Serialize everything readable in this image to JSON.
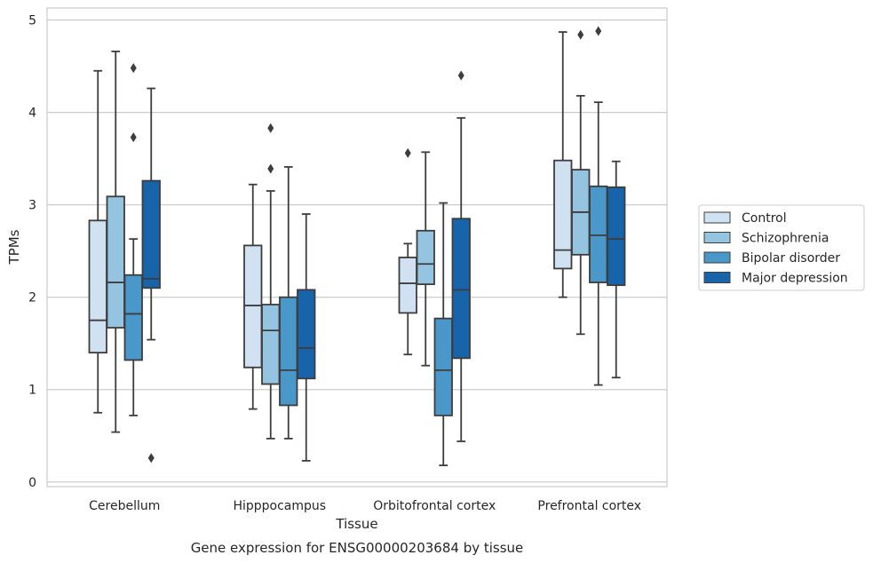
{
  "caption": "Gene expression for ENSG00000203684 by tissue",
  "chart_data": {
    "type": "box",
    "xlabel": "Tissue",
    "ylabel": "TPMs",
    "ylim": [
      -0.05,
      5.13
    ],
    "yticks": [
      0,
      1,
      2,
      3,
      4,
      5
    ],
    "grid": "horizontal",
    "legend_position": "right",
    "categories": [
      "Cerebellum",
      "Hipppocampus",
      "Orbitofrontal cortex",
      "Prefrontal cortex"
    ],
    "series": [
      {
        "name": "Control",
        "color": "#d0e1f2",
        "boxes": [
          {
            "whislo": 0.75,
            "q1": 1.4,
            "med": 1.75,
            "q3": 2.83,
            "whishi": 4.45,
            "fliers": []
          },
          {
            "whislo": 0.79,
            "q1": 1.24,
            "med": 1.91,
            "q3": 2.56,
            "whishi": 3.22,
            "fliers": []
          },
          {
            "whislo": 1.38,
            "q1": 1.83,
            "med": 2.15,
            "q3": 2.43,
            "whishi": 2.58,
            "fliers": [
              3.56
            ]
          },
          {
            "whislo": 2.0,
            "q1": 2.31,
            "med": 2.51,
            "q3": 3.48,
            "whishi": 4.87,
            "fliers": []
          }
        ]
      },
      {
        "name": "Schizophrenia",
        "color": "#94c4df",
        "boxes": [
          {
            "whislo": 0.54,
            "q1": 1.67,
            "med": 2.16,
            "q3": 3.09,
            "whishi": 4.66,
            "fliers": []
          },
          {
            "whislo": 0.47,
            "q1": 1.06,
            "med": 1.64,
            "q3": 1.92,
            "whishi": 3.15,
            "fliers": [
              3.39,
              3.83
            ]
          },
          {
            "whislo": 1.26,
            "q1": 2.14,
            "med": 2.36,
            "q3": 2.72,
            "whishi": 3.57,
            "fliers": []
          },
          {
            "whislo": 1.6,
            "q1": 2.46,
            "med": 2.92,
            "q3": 3.38,
            "whishi": 4.18,
            "fliers": [
              4.84
            ]
          }
        ]
      },
      {
        "name": "Bipolar disorder",
        "color": "#4a98c9",
        "boxes": [
          {
            "whislo": 0.72,
            "q1": 1.32,
            "med": 1.82,
            "q3": 2.24,
            "whishi": 2.63,
            "fliers": [
              3.73,
              4.48
            ]
          },
          {
            "whislo": 0.47,
            "q1": 0.83,
            "med": 1.21,
            "q3": 2.0,
            "whishi": 3.41,
            "fliers": []
          },
          {
            "whislo": 0.18,
            "q1": 0.72,
            "med": 1.21,
            "q3": 1.77,
            "whishi": 3.02,
            "fliers": []
          },
          {
            "whislo": 1.05,
            "q1": 2.16,
            "med": 2.67,
            "q3": 3.2,
            "whishi": 4.11,
            "fliers": [
              4.88
            ]
          }
        ]
      },
      {
        "name": "Major depression",
        "color": "#1764ab",
        "boxes": [
          {
            "whislo": 1.54,
            "q1": 2.1,
            "med": 2.2,
            "q3": 3.26,
            "whishi": 4.26,
            "fliers": [
              0.26
            ]
          },
          {
            "whislo": 0.23,
            "q1": 1.12,
            "med": 1.45,
            "q3": 2.08,
            "whishi": 2.9,
            "fliers": []
          },
          {
            "whislo": 0.44,
            "q1": 1.34,
            "med": 2.08,
            "q3": 2.85,
            "whishi": 3.94,
            "fliers": [
              4.4
            ]
          },
          {
            "whislo": 1.13,
            "q1": 2.13,
            "med": 2.63,
            "q3": 3.19,
            "whishi": 3.47,
            "fliers": []
          }
        ]
      }
    ]
  }
}
